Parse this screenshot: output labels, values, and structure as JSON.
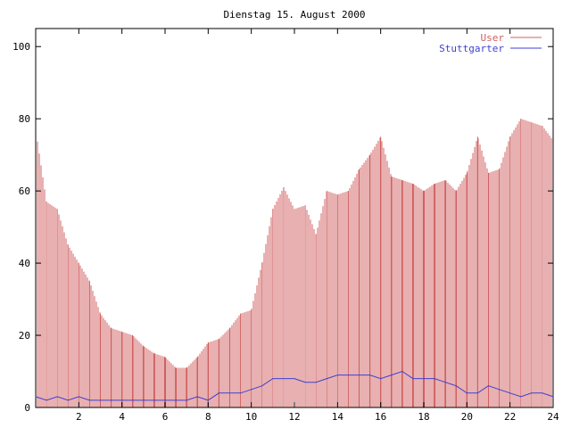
{
  "chart_data": {
    "type": "bar",
    "title": "Dienstag 15. August 2000",
    "xlabel": "",
    "ylabel": "",
    "xlim": [
      0,
      24
    ],
    "ylim": [
      0,
      105
    ],
    "x_ticks": [
      "2",
      "4",
      "6",
      "8",
      "10",
      "12",
      "14",
      "16",
      "18",
      "20",
      "22",
      "24"
    ],
    "y_ticks": [
      "0",
      "20",
      "40",
      "60",
      "80",
      "100"
    ],
    "legend_position": "top-right",
    "grid": false,
    "series": [
      {
        "name": "User",
        "style": "impulses",
        "color": "#d06060",
        "x": [
          0,
          0.5,
          1,
          1.5,
          2,
          2.5,
          3,
          3.5,
          4,
          4.5,
          5,
          5.5,
          6,
          6.5,
          7,
          7.5,
          8,
          8.5,
          9,
          9.5,
          10,
          10.5,
          11,
          11.5,
          12,
          12.5,
          13,
          13.5,
          14,
          14.5,
          15,
          15.5,
          16,
          16.5,
          17,
          17.5,
          18,
          18.5,
          19,
          19.5,
          20,
          20.5,
          21,
          21.5,
          22,
          22.5,
          23,
          23.5,
          24
        ],
        "values": [
          77,
          57,
          55,
          45,
          40,
          35,
          26,
          22,
          21,
          20,
          17,
          15,
          14,
          11,
          11,
          14,
          18,
          19,
          22,
          26,
          27,
          40,
          55,
          61,
          55,
          56,
          48,
          60,
          59,
          60,
          66,
          70,
          75,
          64,
          63,
          62,
          60,
          62,
          63,
          60,
          65,
          75,
          65,
          66,
          75,
          80,
          79,
          78,
          74
        ]
      },
      {
        "name": "Stuttgarter",
        "style": "line",
        "color": "#4040d0",
        "x": [
          0,
          0.5,
          1,
          1.5,
          2,
          2.5,
          3,
          3.5,
          4,
          4.5,
          5,
          5.5,
          6,
          6.5,
          7,
          7.5,
          8,
          8.5,
          9,
          9.5,
          10,
          10.5,
          11,
          11.5,
          12,
          12.5,
          13,
          13.5,
          14,
          14.5,
          15,
          15.5,
          16,
          16.5,
          17,
          17.5,
          18,
          18.5,
          19,
          19.5,
          20,
          20.5,
          21,
          21.5,
          22,
          22.5,
          23,
          23.5,
          24
        ],
        "values": [
          3,
          2,
          3,
          2,
          3,
          2,
          2,
          2,
          2,
          2,
          2,
          2,
          2,
          2,
          2,
          3,
          2,
          4,
          4,
          4,
          5,
          6,
          8,
          8,
          8,
          7,
          7,
          8,
          9,
          9,
          9,
          9,
          8,
          9,
          10,
          8,
          8,
          8,
          7,
          6,
          4,
          4,
          6,
          5,
          4,
          3,
          4,
          4,
          3
        ]
      }
    ]
  }
}
